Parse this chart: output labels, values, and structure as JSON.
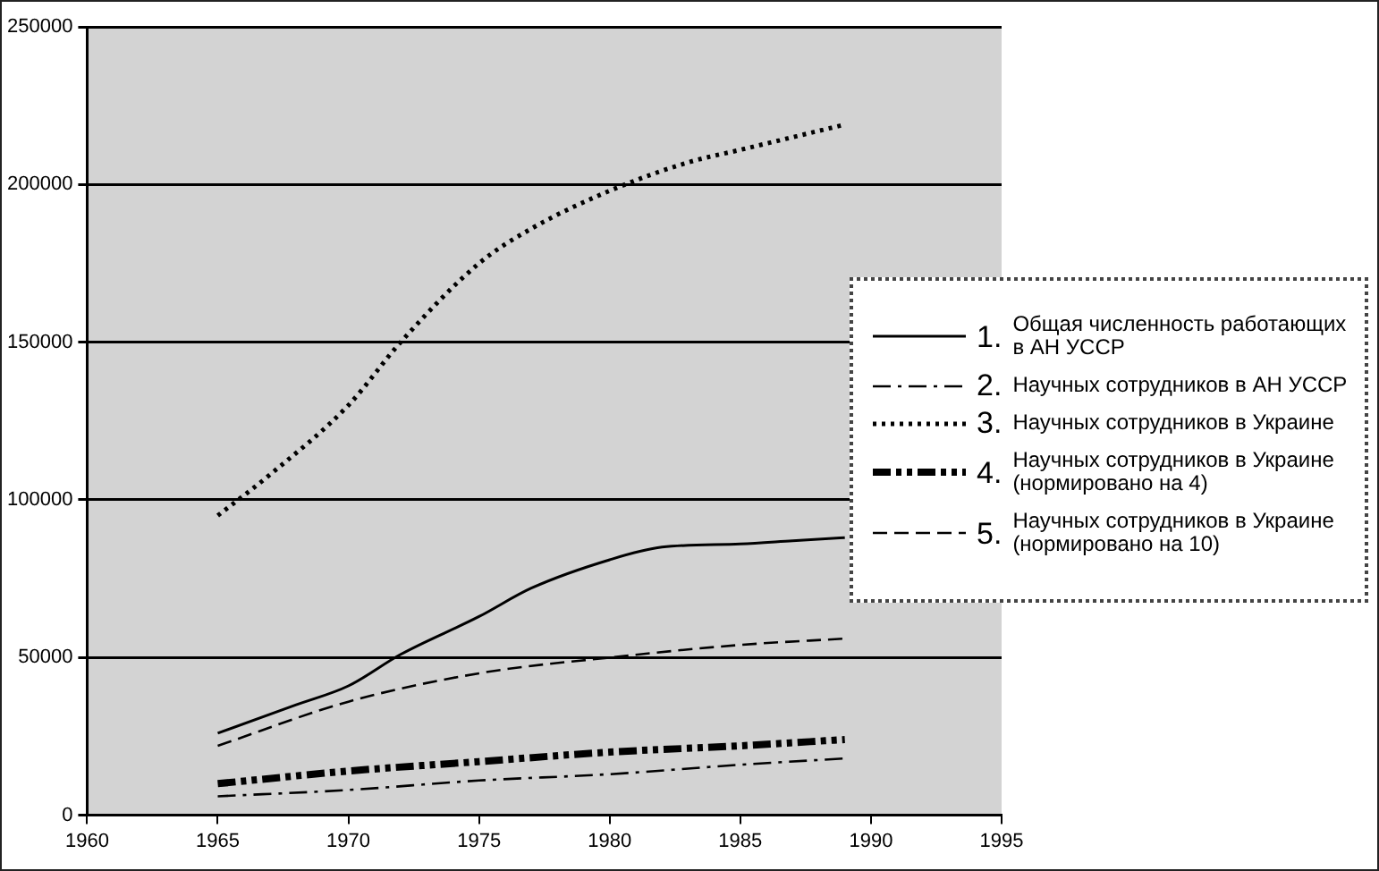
{
  "chart_data": {
    "type": "line",
    "xlim": [
      1960,
      1995
    ],
    "xticks": [
      1960,
      1965,
      1970,
      1975,
      1980,
      1985,
      1990,
      1995
    ],
    "ylim": [
      0,
      250000
    ],
    "yticks": [
      0,
      50000,
      100000,
      150000,
      200000,
      250000
    ],
    "grid": "y",
    "legend": "right",
    "marker": "none",
    "series": [
      {
        "name": "1. Общая численность работающих в АН УССР",
        "color": "#000000",
        "line_style": "solid",
        "x": [
          1965,
          1968,
          1970,
          1972,
          1975,
          1977,
          1980,
          1982,
          1985,
          1987,
          1989
        ],
        "values": [
          26000,
          35000,
          41000,
          51000,
          63000,
          72000,
          81000,
          85000,
          86000,
          87000,
          88000
        ]
      },
      {
        "name": "2. Научных сотрудников в АН УССР",
        "color": "#000000",
        "line_style": "dashdot",
        "x": [
          1965,
          1970,
          1975,
          1980,
          1985,
          1989
        ],
        "values": [
          6000,
          8000,
          11000,
          13000,
          16000,
          18000
        ]
      },
      {
        "name": "3. Научных сотрудников в Украине",
        "color": "#000000",
        "line_style": "dotted",
        "x": [
          1965,
          1967,
          1970,
          1972,
          1975,
          1977,
          1980,
          1983,
          1985,
          1987,
          1989
        ],
        "values": [
          95000,
          108000,
          130000,
          150000,
          175000,
          186000,
          198000,
          207000,
          211000,
          215000,
          219000
        ]
      },
      {
        "name": "4. Научных сотрудников в Украине (нормировано на 4)",
        "color": "#000000",
        "line_style": "dashdotdot",
        "x": [
          1965,
          1970,
          1975,
          1980,
          1985,
          1989
        ],
        "values": [
          10000,
          14000,
          17000,
          20000,
          22000,
          24000
        ]
      },
      {
        "name": "5. Научных сотрудников в Украине (нормировано на 10)",
        "color": "#000000",
        "line_style": "dashed",
        "x": [
          1965,
          1970,
          1975,
          1980,
          1985,
          1989
        ],
        "values": [
          22000,
          36000,
          45000,
          50000,
          54000,
          56000
        ]
      }
    ]
  }
}
